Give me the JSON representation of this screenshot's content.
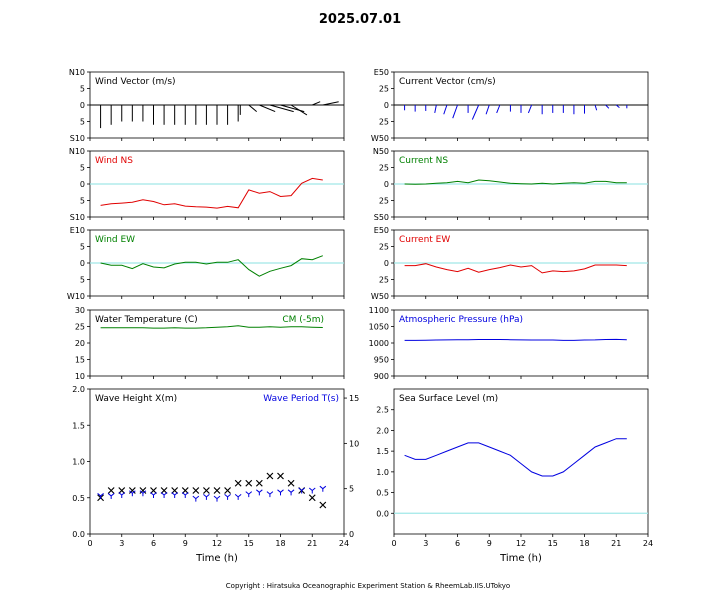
{
  "page": {
    "title": "2025.07.01",
    "copyright": "Copyright : Hiratsuka Oceanographic Experiment Station & RheemLab.IIS.UTokyo",
    "xlabel": "Time (h)",
    "x_ticks": [
      "0",
      "3",
      "6",
      "9",
      "12",
      "15",
      "18",
      "21",
      "24"
    ]
  },
  "colors": {
    "red": "#e00000",
    "green": "#008000",
    "blue": "#0000e0",
    "zero_line": "#a0e8e8",
    "black": "#000000"
  },
  "chart_data": [
    {
      "id": "wind-vector",
      "type": "vector",
      "title": "Wind Vector (m/s)",
      "title_color": "#000000",
      "ylim": [
        -10,
        10
      ],
      "y_ticks": [
        "N10",
        "5",
        "0",
        "5",
        "S10"
      ],
      "x": [
        1,
        2,
        3,
        4,
        5,
        6,
        7,
        8,
        9,
        10,
        11,
        12,
        13,
        14,
        14.2,
        15,
        16,
        17,
        18,
        19,
        20,
        21,
        22
      ],
      "ns": [
        -7,
        -6,
        -5,
        -5,
        -5,
        -6,
        -6,
        -6,
        -6,
        -6,
        -6,
        -6,
        -6,
        -5,
        -3,
        -2,
        -2,
        -2,
        -2,
        -3,
        0,
        1,
        1
      ],
      "ew": [
        0,
        0,
        0,
        0,
        0,
        0,
        0,
        0,
        0,
        0,
        0,
        0,
        0,
        0,
        0,
        1,
        2,
        3,
        3,
        2,
        1,
        1,
        2
      ],
      "color": "#000000"
    },
    {
      "id": "current-vector",
      "type": "vector",
      "title": "Current Vector (cm/s)",
      "title_color": "#000000",
      "ylim": [
        -50,
        50
      ],
      "y_ticks": [
        "E50",
        "25",
        "0",
        "25",
        "W50"
      ],
      "x": [
        1,
        2,
        3,
        4,
        5,
        6,
        7,
        8,
        9,
        10,
        11,
        12,
        13,
        14,
        15,
        16,
        17,
        18,
        19,
        20,
        21,
        22
      ],
      "ns": [
        -8,
        -10,
        -9,
        -12,
        -14,
        -20,
        -12,
        -22,
        -14,
        -12,
        -10,
        -12,
        -12,
        -14,
        -12,
        -12,
        -14,
        -13,
        -8,
        -5,
        -4,
        -5
      ],
      "ew": [
        0,
        0,
        0,
        -1,
        -2,
        -3,
        0,
        -4,
        -2,
        -2,
        0,
        0,
        -2,
        0,
        0,
        0,
        0,
        0,
        1,
        2,
        2,
        0
      ],
      "color": "#0000e0"
    },
    {
      "id": "wind-ns",
      "type": "line",
      "title": "Wind NS",
      "title_color": "#e00000",
      "ylim": [
        -10,
        10
      ],
      "y_ticks": [
        "N10",
        "5",
        "0",
        "5",
        "S10"
      ],
      "zero_line": true,
      "x": [
        1,
        2,
        3,
        4,
        5,
        6,
        7,
        8,
        9,
        10,
        11,
        12,
        13,
        14,
        15,
        16,
        17,
        18,
        19,
        20,
        21,
        22
      ],
      "values": [
        -6.5,
        -6,
        -5.8,
        -5.5,
        -4.8,
        -5.3,
        -6.3,
        -6,
        -6.7,
        -6.9,
        -7,
        -7.3,
        -6.8,
        -7.2,
        -1.8,
        -2.8,
        -2.3,
        -3.8,
        -3.5,
        0.2,
        1.7,
        1.2
      ],
      "color": "#e00000"
    },
    {
      "id": "current-ns",
      "type": "line",
      "title": "Current NS",
      "title_color": "#008000",
      "ylim": [
        -50,
        50
      ],
      "y_ticks": [
        "N50",
        "25",
        "0",
        "25",
        "S50"
      ],
      "zero_line": true,
      "x": [
        1,
        2,
        3,
        4,
        5,
        6,
        7,
        8,
        9,
        10,
        11,
        12,
        13,
        14,
        15,
        16,
        17,
        18,
        19,
        20,
        21,
        22
      ],
      "values": [
        0,
        -0.5,
        0,
        1,
        2,
        4,
        2,
        6,
        5,
        3,
        1,
        0.5,
        0,
        1,
        0,
        1,
        2,
        1,
        4,
        4,
        2,
        2
      ],
      "color": "#008000"
    },
    {
      "id": "wind-ew",
      "type": "line",
      "title": "Wind EW",
      "title_color": "#008000",
      "ylim": [
        -10,
        10
      ],
      "y_ticks": [
        "E10",
        "5",
        "0",
        "5",
        "W10"
      ],
      "zero_line": true,
      "x": [
        1,
        2,
        3,
        4,
        5,
        6,
        7,
        8,
        9,
        10,
        11,
        12,
        13,
        14,
        15,
        16,
        17,
        18,
        19,
        20,
        21,
        22
      ],
      "values": [
        0,
        -0.7,
        -0.7,
        -1.7,
        -0.2,
        -1.2,
        -1.5,
        -0.3,
        0.2,
        0.2,
        -0.3,
        0.2,
        0.2,
        1,
        -2,
        -4,
        -2.5,
        -1.6,
        -0.8,
        1.3,
        1,
        2.2
      ],
      "color": "#008000"
    },
    {
      "id": "current-ew",
      "type": "line",
      "title": "Current EW",
      "title_color": "#e00000",
      "ylim": [
        -50,
        50
      ],
      "y_ticks": [
        "E50",
        "25",
        "0",
        "25",
        "W50"
      ],
      "zero_line": true,
      "x": [
        1,
        2,
        3,
        4,
        5,
        6,
        7,
        8,
        9,
        10,
        11,
        12,
        13,
        14,
        15,
        16,
        17,
        18,
        19,
        20,
        21,
        22
      ],
      "values": [
        -4,
        -4,
        -1,
        -6,
        -10,
        -13,
        -8,
        -14,
        -10,
        -7,
        -3,
        -6,
        -4,
        -15,
        -12,
        -13,
        -12,
        -9,
        -3,
        -3,
        -3,
        -4
      ],
      "color": "#e00000"
    },
    {
      "id": "water-temperature",
      "type": "line",
      "title": "Water Temperature (C)",
      "title_color": "#000000",
      "annotation": "CM (-5m)",
      "annotation_color": "#008000",
      "ylim": [
        10,
        30
      ],
      "y_ticks": [
        "30",
        "25",
        "20",
        "15",
        "10"
      ],
      "x": [
        1,
        2,
        3,
        4,
        5,
        6,
        7,
        8,
        9,
        10,
        11,
        12,
        13,
        14,
        15,
        16,
        17,
        18,
        19,
        20,
        21,
        22
      ],
      "values": [
        24.6,
        24.6,
        24.6,
        24.6,
        24.6,
        24.5,
        24.5,
        24.6,
        24.5,
        24.5,
        24.6,
        24.8,
        24.9,
        25.2,
        24.8,
        24.8,
        24.9,
        24.8,
        24.9,
        24.9,
        24.8,
        24.7
      ],
      "color": "#008000"
    },
    {
      "id": "atmospheric-pressure",
      "type": "line",
      "title": "Atmospheric Pressure (hPa)",
      "title_color": "#0000e0",
      "ylim": [
        900,
        1100
      ],
      "y_ticks": [
        "1100",
        "1050",
        "1000",
        "950",
        "900"
      ],
      "x": [
        1,
        2,
        3,
        4,
        5,
        6,
        7,
        8,
        9,
        10,
        11,
        12,
        13,
        14,
        15,
        16,
        17,
        18,
        19,
        20,
        21,
        22
      ],
      "values": [
        1008,
        1008,
        1008.5,
        1009,
        1009.5,
        1010,
        1010,
        1010.5,
        1010.5,
        1010.5,
        1010,
        1009.5,
        1009,
        1009,
        1009,
        1008,
        1008,
        1009,
        1009.5,
        1010.5,
        1011,
        1010
      ],
      "color": "#0000e0"
    },
    {
      "id": "wave",
      "type": "scatter",
      "title": "Wave Height X(m)",
      "title_color": "#000000",
      "title2": "Wave Period T(s)",
      "title2_color": "#0000e0",
      "ylim": [
        0,
        2
      ],
      "y_ticks": [
        "2.0",
        "1.5",
        "1.0",
        "0.5",
        "0.0"
      ],
      "y2lim": [
        0,
        16
      ],
      "y2_ticks": [
        "15",
        "10",
        "5",
        "0"
      ],
      "x": [
        1,
        2,
        3,
        4,
        5,
        6,
        7,
        8,
        9,
        10,
        11,
        12,
        13,
        14,
        15,
        16,
        17,
        18,
        19,
        20,
        21,
        22
      ],
      "height": [
        0.5,
        0.6,
        0.6,
        0.6,
        0.6,
        0.6,
        0.6,
        0.6,
        0.6,
        0.6,
        0.6,
        0.6,
        0.6,
        0.7,
        0.7,
        0.7,
        0.8,
        0.8,
        0.7,
        0.6,
        0.5,
        0.4
      ],
      "period": [
        4.2,
        4.2,
        4.3,
        4.5,
        4.5,
        4.3,
        4.3,
        4.3,
        4.3,
        3.9,
        4.1,
        3.9,
        4.1,
        4.1,
        4.4,
        4.6,
        4.4,
        4.6,
        4.6,
        4.8,
        4.8,
        5
      ],
      "height_color": "#000000",
      "period_color": "#0000e0"
    },
    {
      "id": "sea-surface-level",
      "type": "line",
      "title": "Sea Surface Level (m)",
      "title_color": "#000000",
      "ylim": [
        -0.5,
        3
      ],
      "y_ticks": [
        "2.5",
        "2.0",
        "1.5",
        "1.0",
        "0.5",
        "0.0"
      ],
      "y_tick_values": [
        2.5,
        2,
        1.5,
        1,
        0.5,
        0
      ],
      "zero_line": true,
      "x": [
        1,
        2,
        3,
        4,
        5,
        6,
        7,
        8,
        9,
        10,
        11,
        12,
        13,
        14,
        15,
        16,
        17,
        18,
        19,
        20,
        21,
        22
      ],
      "values": [
        1.4,
        1.3,
        1.3,
        1.4,
        1.5,
        1.6,
        1.7,
        1.7,
        1.6,
        1.5,
        1.4,
        1.2,
        1.0,
        0.9,
        0.9,
        1.0,
        1.2,
        1.4,
        1.6,
        1.7,
        1.8,
        1.8
      ],
      "color": "#0000e0"
    }
  ]
}
